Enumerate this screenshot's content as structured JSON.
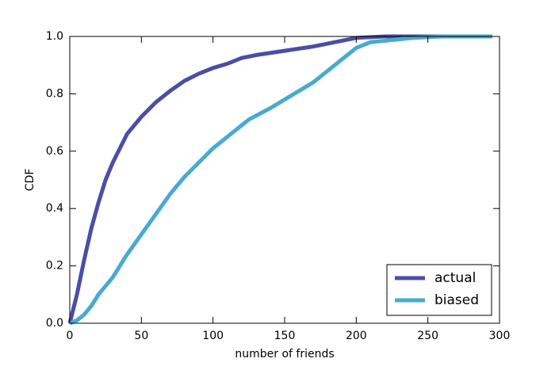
{
  "chart_data": {
    "type": "line",
    "xlabel": "number of friends",
    "ylabel": "CDF",
    "xlim": [
      0,
      300
    ],
    "ylim": [
      0,
      1
    ],
    "xticks": [
      0,
      50,
      100,
      150,
      200,
      250,
      300
    ],
    "yticks": [
      {
        "value": 0,
        "label": "0.0"
      },
      0.2,
      0.4,
      0.6,
      0.8,
      {
        "value": 1,
        "label": "1.0"
      }
    ],
    "grid": false,
    "legend": "lower right",
    "series": [
      {
        "name": "actual",
        "color": "#4a4ea6",
        "x": [
          0,
          5,
          10,
          15,
          20,
          25,
          30,
          35,
          40,
          50,
          60,
          70,
          80,
          90,
          100,
          110,
          120,
          130,
          150,
          170,
          190,
          200,
          220,
          295
        ],
        "values": [
          0,
          0.1,
          0.22,
          0.33,
          0.42,
          0.5,
          0.56,
          0.61,
          0.66,
          0.72,
          0.77,
          0.81,
          0.845,
          0.87,
          0.89,
          0.905,
          0.925,
          0.935,
          0.95,
          0.965,
          0.985,
          0.995,
          1,
          1
        ]
      },
      {
        "name": "biased",
        "color": "#48aad2",
        "x": [
          0,
          5,
          10,
          15,
          20,
          30,
          40,
          50,
          60,
          70,
          80,
          90,
          100,
          110,
          120,
          125,
          140,
          150,
          160,
          170,
          180,
          190,
          200,
          210,
          220,
          240,
          260,
          295
        ],
        "values": [
          0,
          0.01,
          0.03,
          0.06,
          0.1,
          0.16,
          0.24,
          0.31,
          0.38,
          0.45,
          0.51,
          0.56,
          0.61,
          0.65,
          0.69,
          0.71,
          0.75,
          0.78,
          0.81,
          0.84,
          0.88,
          0.92,
          0.96,
          0.98,
          0.985,
          0.995,
          1,
          1
        ]
      }
    ]
  }
}
